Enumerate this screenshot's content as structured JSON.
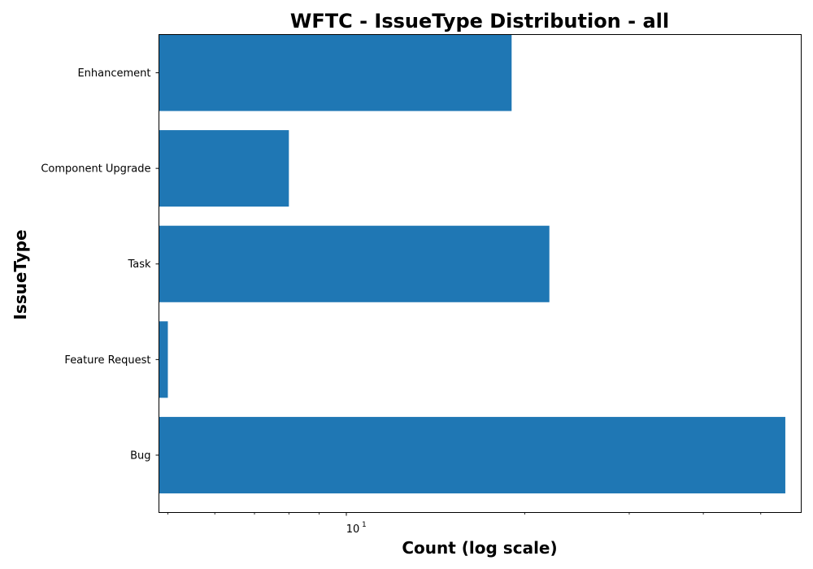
{
  "chart_data": {
    "type": "bar",
    "orientation": "horizontal",
    "title": "WFTC - IssueType Distribution - all",
    "xlabel": "Count (log scale)",
    "ylabel": "IssueType",
    "x_scale": "log",
    "xlim": [
      4.83,
      58.5
    ],
    "categories": [
      "Bug",
      "Feature Request",
      "Task",
      "Component Upgrade",
      "Enhancement"
    ],
    "values": [
      55,
      5,
      22,
      8,
      19
    ],
    "x_tick_label": {
      "base": "10",
      "exponent": "1",
      "value": 10
    },
    "bar_color": "#1f77b4",
    "grid": false,
    "legend": "none"
  }
}
